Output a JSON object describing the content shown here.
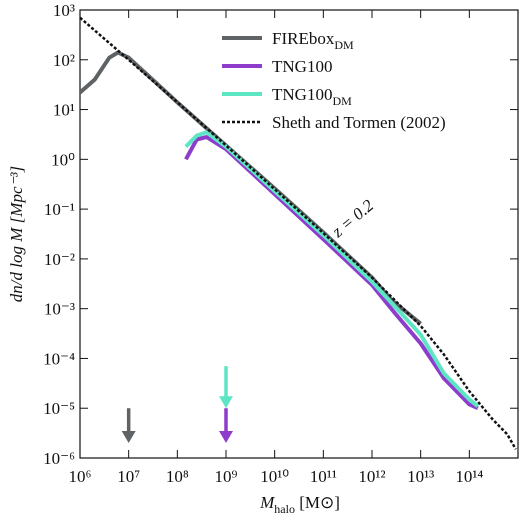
{
  "chart_data": {
    "type": "line",
    "xscale": "log",
    "yscale": "log",
    "xlim": [
      1000000.0,
      1000000000000000.0
    ],
    "ylim": [
      1e-06,
      1000.0
    ],
    "xticks": [
      {
        "value": 1000000.0,
        "label": "10⁶"
      },
      {
        "value": 10000000.0,
        "label": "10⁷"
      },
      {
        "value": 100000000.0,
        "label": "10⁸"
      },
      {
        "value": 1000000000.0,
        "label": "10⁹"
      },
      {
        "value": 10000000000.0,
        "label": "10¹⁰"
      },
      {
        "value": 100000000000.0,
        "label": "10¹¹"
      },
      {
        "value": 1000000000000.0,
        "label": "10¹²"
      },
      {
        "value": 10000000000000.0,
        "label": "10¹³"
      },
      {
        "value": 100000000000000.0,
        "label": "10¹⁴"
      }
    ],
    "yticks": [
      {
        "value": 1e-06,
        "label": "10⁻⁶"
      },
      {
        "value": 1e-05,
        "label": "10⁻⁵"
      },
      {
        "value": 0.0001,
        "label": "10⁻⁴"
      },
      {
        "value": 0.001,
        "label": "10⁻³"
      },
      {
        "value": 0.01,
        "label": "10⁻²"
      },
      {
        "value": 0.1,
        "label": "10⁻¹"
      },
      {
        "value": 1,
        "label": "10⁰"
      },
      {
        "value": 10,
        "label": "10¹"
      },
      {
        "value": 100,
        "label": "10²"
      },
      {
        "value": 1000,
        "label": "10³"
      }
    ],
    "xlabel": {
      "main": "M",
      "sub": "halo",
      "rest": " [M⊙]"
    },
    "ylabel": "dn/d log M [Mpc⁻³]",
    "annotation": "z = 0.2",
    "legend": "upper right",
    "series": [
      {
        "name": "FIREbox",
        "name_sub": "DM",
        "color": "#5f6366",
        "dash": false,
        "x": [
          1000000.0,
          2000000.0,
          4000000.0,
          6000000.0,
          10000000.0,
          100000000.0,
          1000000000.0,
          10000000000.0,
          100000000000.0,
          1000000000000.0,
          2500000000000.0,
          10000000000000.0
        ],
        "values": [
          22,
          40,
          110,
          140,
          110,
          14,
          1.9,
          0.26,
          0.034,
          0.0042,
          0.0015,
          0.0005
        ]
      },
      {
        "name": "TNG100",
        "color": "#8e3ccb",
        "dash": false,
        "x": [
          150000000.0,
          250000000.0,
          400000000.0,
          1000000000.0,
          10000000000.0,
          100000000000.0,
          1000000000000.0,
          3000000000000.0,
          10000000000000.0,
          30000000000000.0,
          100000000000000.0,
          150000000000000.0
        ],
        "values": [
          1.0,
          2.5,
          2.8,
          1.6,
          0.2,
          0.025,
          0.003,
          0.0008,
          0.0002,
          4e-05,
          1.2e-05,
          1e-05
        ]
      },
      {
        "name": "TNG100",
        "name_sub": "DM",
        "color": "#5ce6c4",
        "dash": false,
        "x": [
          150000000.0,
          250000000.0,
          400000000.0,
          1000000000.0,
          10000000000.0,
          100000000000.0,
          1000000000000.0,
          10000000000000.0,
          30000000000000.0,
          100000000000000.0,
          150000000000000.0
        ],
        "values": [
          1.8,
          3.0,
          3.5,
          1.8,
          0.23,
          0.03,
          0.0035,
          0.0003,
          5e-05,
          1.5e-05,
          1.1e-05
        ]
      },
      {
        "name": "Sheth and Tormen (2002)",
        "color": "#111111",
        "dash": true,
        "x": [
          1000000.0,
          10000000.0,
          100000000.0,
          1000000000.0,
          10000000000.0,
          100000000000.0,
          1000000000000.0,
          10000000000000.0,
          30000000000000.0,
          100000000000000.0,
          300000000000000.0,
          600000000000000.0,
          900000000000000.0
        ],
        "values": [
          700,
          100,
          14,
          1.9,
          0.25,
          0.033,
          0.0042,
          0.00045,
          0.00012,
          2.2e-05,
          6e-06,
          3e-06,
          1.5e-06
        ]
      }
    ],
    "arrows": [
      {
        "x": 10000000.0,
        "y": [
          1e-05,
          2e-06
        ],
        "color": "#5f6366"
      },
      {
        "x": 1000000000.0,
        "y": [
          1e-05,
          2e-06
        ],
        "color": "#8e3ccb"
      },
      {
        "x": 1000000000.0,
        "y": [
          7e-05,
          1e-05
        ],
        "color": "#5ce6c4"
      }
    ]
  }
}
